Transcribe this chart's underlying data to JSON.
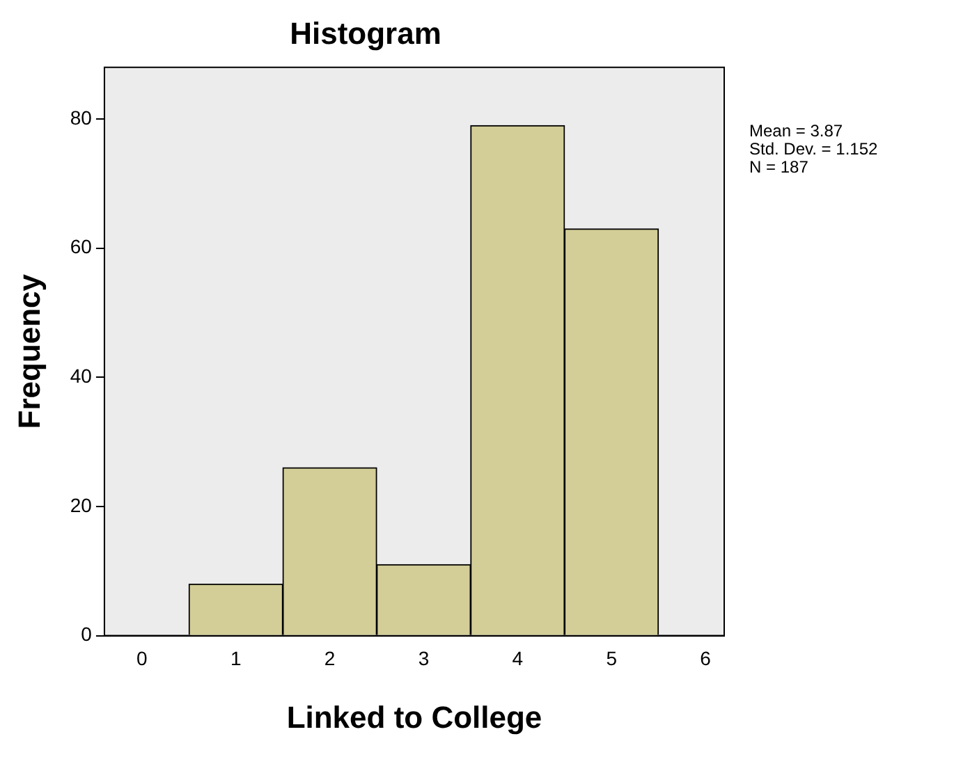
{
  "chart_data": {
    "type": "histogram",
    "title": "Histogram",
    "xlabel": "Linked to College",
    "ylabel": "Frequency",
    "bins": [
      0.5,
      1.5,
      2.5,
      3.5,
      4.5,
      5.5
    ],
    "values": [
      8,
      26,
      11,
      79,
      63
    ],
    "color": "#d3ce97",
    "xlim": [
      -0.4,
      6.2
    ],
    "xticks": [
      0,
      1,
      2,
      3,
      4,
      5,
      6
    ],
    "ylim": [
      0,
      88
    ],
    "yticks": [
      0,
      20,
      40,
      60,
      80
    ],
    "grid": false,
    "legend": false,
    "annotations": [
      "Mean = 3.87",
      "Std. Dev. = 1.152",
      "N = 187"
    ]
  }
}
